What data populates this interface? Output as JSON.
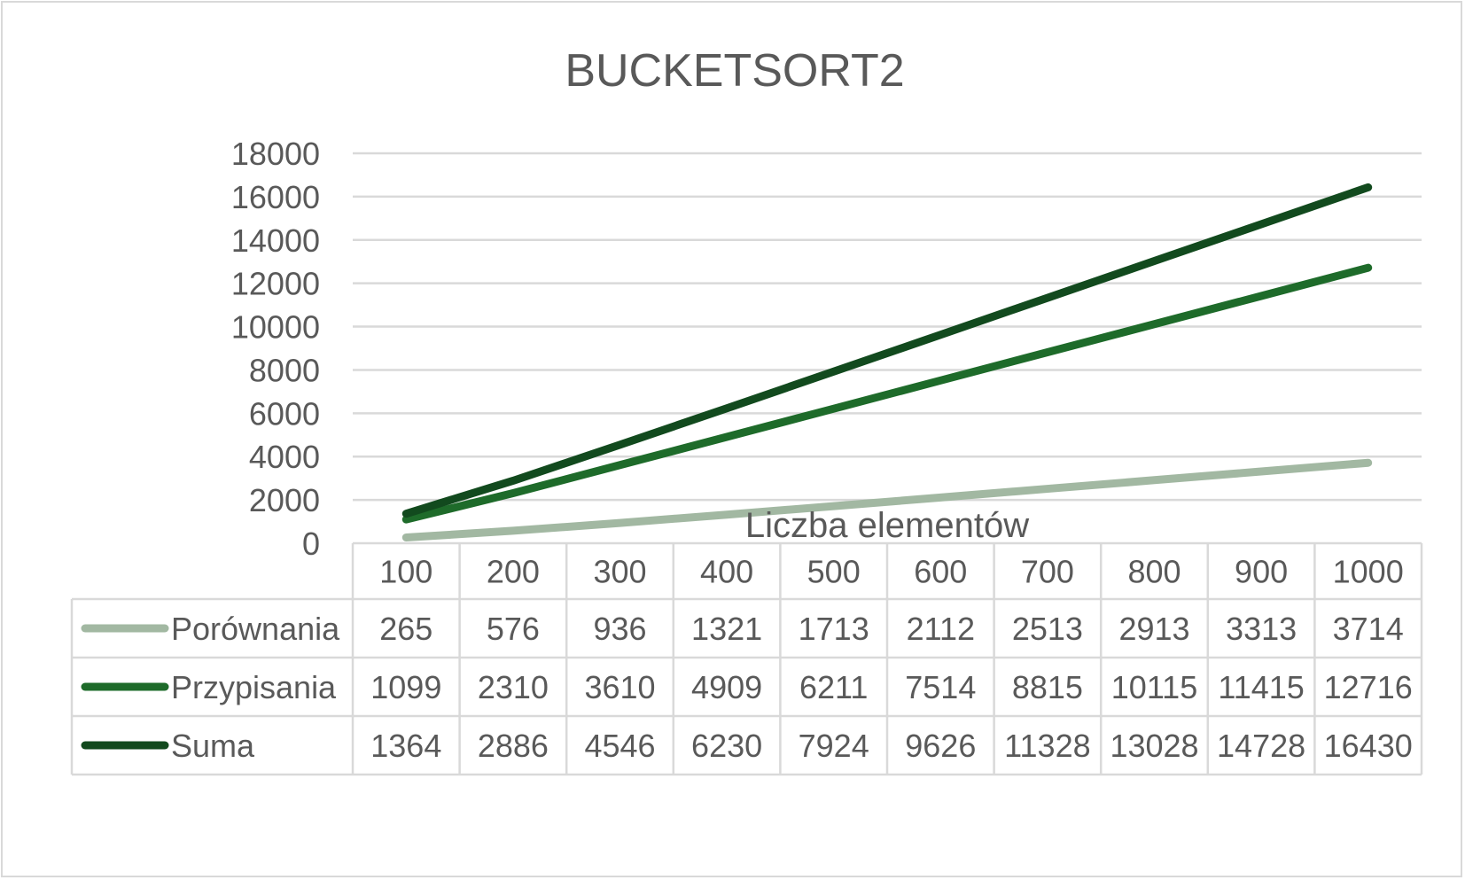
{
  "chart_data": {
    "type": "line",
    "title": "BUCKETSORT2",
    "xlabel": "Liczba elementów",
    "ylabel": "",
    "categories": [
      "100",
      "200",
      "300",
      "400",
      "500",
      "600",
      "700",
      "800",
      "900",
      "1000"
    ],
    "ylim": [
      0,
      18000
    ],
    "ytick_step": 2000,
    "grid": true,
    "legend": "data-table",
    "series": [
      {
        "name": "Porównania",
        "color": "#a2b8a2",
        "values": [
          265,
          576,
          936,
          1321,
          1713,
          2112,
          2513,
          2913,
          3313,
          3714
        ]
      },
      {
        "name": "Przypisania",
        "color": "#1e6b2a",
        "values": [
          1099,
          2310,
          3610,
          4909,
          6211,
          7514,
          8815,
          10115,
          11415,
          12716
        ]
      },
      {
        "name": "Suma",
        "color": "#124a1e",
        "values": [
          1364,
          2886,
          4546,
          6230,
          7924,
          9626,
          11328,
          13028,
          14728,
          16430
        ]
      }
    ]
  }
}
